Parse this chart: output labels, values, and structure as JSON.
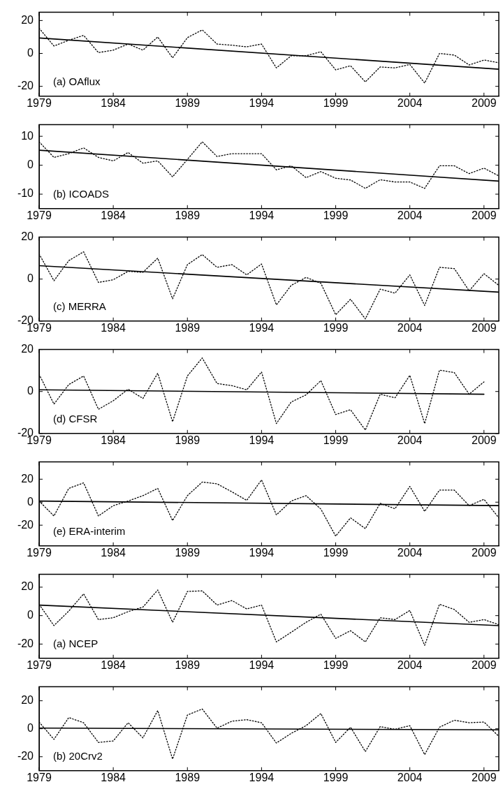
{
  "chart_data": [
    {
      "type": "line",
      "annotations": [
        "(a) OAflux"
      ],
      "xlim": [
        1979,
        2010
      ],
      "xticks": [
        1979,
        1984,
        1989,
        1994,
        1999,
        2004,
        2009
      ],
      "ylim": [
        -26,
        25
      ],
      "yticks": [
        -20,
        0,
        20
      ],
      "grid": false,
      "legend": false,
      "marker": "none",
      "series": [
        {
          "color": "#000000",
          "line_style": "dotted",
          "x": [
            1979,
            1980,
            1981,
            1982,
            1983,
            1984,
            1985,
            1986,
            1987,
            1988,
            1989,
            1990,
            1991,
            1992,
            1993,
            1994,
            1995,
            1996,
            1997,
            1998,
            1999,
            2000,
            2001,
            2002,
            2003,
            2004,
            2005,
            2006,
            2007,
            2008,
            2009,
            2010
          ],
          "values": [
            15.3,
            4.5,
            8,
            11,
            0.5,
            2,
            5.7,
            2,
            10,
            -2.7,
            9.6,
            14.3,
            5.7,
            5,
            4,
            5.7,
            -8.8,
            -1.4,
            -1.4,
            1,
            -10,
            -7.5,
            -17.3,
            -8.2,
            -8.8,
            -6.7,
            -18,
            0,
            -1,
            -7,
            -4,
            -5.7
          ]
        },
        {
          "color": "#000000",
          "line_style": "solid",
          "x": [
            1979,
            2010
          ],
          "values": [
            9.4,
            -9.6
          ]
        }
      ]
    },
    {
      "type": "line",
      "annotations": [
        "(b) ICOADS"
      ],
      "xlim": [
        1979,
        2010
      ],
      "xticks": [
        1979,
        1984,
        1989,
        1994,
        1999,
        2004,
        2009
      ],
      "ylim": [
        -15,
        14
      ],
      "yticks": [
        -10,
        0,
        10
      ],
      "grid": false,
      "legend": false,
      "marker": "none",
      "series": [
        {
          "color": "#000000",
          "line_style": "dotted",
          "x": [
            1979,
            1980,
            1981,
            1982,
            1983,
            1984,
            1985,
            1986,
            1987,
            1988,
            1989,
            1990,
            1991,
            1992,
            1993,
            1994,
            1995,
            1996,
            1997,
            1998,
            1999,
            2000,
            2001,
            2002,
            2003,
            2004,
            2005,
            2006,
            2007,
            2008,
            2009,
            2010
          ],
          "values": [
            8.1,
            2.7,
            4,
            6,
            2.7,
            1.5,
            4.4,
            0.7,
            1.5,
            -4,
            2,
            8.1,
            3,
            4,
            4,
            4,
            -1.6,
            -0.2,
            -4.3,
            -2.2,
            -4.5,
            -5.1,
            -8,
            -5,
            -5.8,
            -5.8,
            -8,
            -0.2,
            -0.2,
            -2.9,
            -1,
            -3.7
          ]
        },
        {
          "color": "#000000",
          "line_style": "solid",
          "x": [
            1979,
            2010
          ],
          "values": [
            5.2,
            -5.5
          ]
        }
      ]
    },
    {
      "type": "line",
      "annotations": [
        "(c) MERRA"
      ],
      "xlim": [
        1979,
        2010
      ],
      "xticks": [
        1979,
        1984,
        1989,
        1994,
        1999,
        2004,
        2009
      ],
      "ylim": [
        -20,
        20
      ],
      "yticks": [
        -20,
        0,
        20
      ],
      "grid": false,
      "legend": false,
      "marker": "none",
      "series": [
        {
          "color": "#000000",
          "line_style": "dotted",
          "x": [
            1979,
            1980,
            1981,
            1982,
            1983,
            1984,
            1985,
            1986,
            1987,
            1988,
            1989,
            1990,
            1991,
            1992,
            1993,
            1994,
            1995,
            1996,
            1997,
            1998,
            1999,
            2000,
            2001,
            2002,
            2003,
            2004,
            2005,
            2006,
            2007,
            2008,
            2009,
            2010
          ],
          "values": [
            12,
            -0.8,
            8.8,
            13,
            -1.6,
            -0.3,
            3.7,
            3.2,
            10,
            -9.4,
            6.9,
            11.7,
            5.6,
            6.9,
            2,
            7.2,
            -12.3,
            -3,
            0.8,
            -2,
            -17,
            -9.6,
            -19,
            -4.8,
            -6.7,
            2,
            -12.6,
            5.6,
            5,
            -5.6,
            2.6,
            -3
          ]
        },
        {
          "color": "#000000",
          "line_style": "solid",
          "x": [
            1979,
            2010
          ],
          "values": [
            6.4,
            -6.2
          ]
        }
      ]
    },
    {
      "type": "line",
      "annotations": [
        "(d) CFSR"
      ],
      "xlim": [
        1979,
        2010
      ],
      "xticks": [
        1979,
        1984,
        1989,
        1994,
        1999,
        2004,
        2009
      ],
      "ylim": [
        -20,
        20
      ],
      "yticks": [
        -20,
        0,
        20
      ],
      "grid": false,
      "legend": false,
      "marker": "none",
      "series": [
        {
          "color": "#000000",
          "line_style": "dotted",
          "x": [
            1979,
            1980,
            1981,
            1982,
            1983,
            1984,
            1985,
            1986,
            1987,
            1988,
            1989,
            1990,
            1991,
            1992,
            1993,
            1994,
            1995,
            1996,
            1997,
            1998,
            1999,
            2000,
            2001,
            2002,
            2003,
            2004,
            2005,
            2006,
            2007,
            2008,
            2009
          ],
          "values": [
            8.2,
            -6,
            3.3,
            7.4,
            -8.5,
            -4.4,
            1.1,
            -3.3,
            8.7,
            -14.4,
            7.4,
            16,
            3.8,
            2.8,
            0.8,
            9.3,
            -15.3,
            -5,
            -1.6,
            5.2,
            -11,
            -8.7,
            -18.4,
            -1.3,
            -3,
            7.7,
            -15.3,
            10.2,
            9,
            -1.3,
            4.6
          ]
        },
        {
          "color": "#000000",
          "line_style": "solid",
          "x": [
            1979,
            2009
          ],
          "values": [
            0.8,
            -1.3
          ]
        }
      ]
    },
    {
      "type": "line",
      "annotations": [
        "(e) ERA-interim"
      ],
      "xlim": [
        1979,
        2010
      ],
      "xticks": [
        1979,
        1984,
        1989,
        1994,
        1999,
        2004,
        2009
      ],
      "ylim": [
        -38,
        35
      ],
      "yticks": [
        -20,
        0,
        20
      ],
      "grid": false,
      "legend": false,
      "marker": "none",
      "series": [
        {
          "color": "#000000",
          "line_style": "dotted",
          "x": [
            1979,
            1980,
            1981,
            1982,
            1983,
            1984,
            1985,
            1986,
            1987,
            1988,
            1989,
            1990,
            1991,
            1992,
            1993,
            1994,
            1995,
            1996,
            1997,
            1998,
            1999,
            2000,
            2001,
            2002,
            2003,
            2004,
            2005,
            2006,
            2007,
            2008,
            2009,
            2010
          ],
          "values": [
            1,
            -12,
            12,
            16.8,
            -12,
            -3,
            1,
            5.7,
            12,
            -16,
            5.7,
            17.5,
            16,
            9,
            1.6,
            19.4,
            -11,
            1,
            5.7,
            -6,
            -29.5,
            -13.6,
            -23,
            -1,
            -5.7,
            13.7,
            -8,
            10.5,
            10.5,
            -3,
            2.5,
            -13.6
          ]
        },
        {
          "color": "#000000",
          "line_style": "solid",
          "x": [
            1979,
            2010
          ],
          "values": [
            1,
            -3
          ]
        }
      ]
    },
    {
      "type": "line",
      "annotations": [
        "(a) NCEP"
      ],
      "xlim": [
        1979,
        2010
      ],
      "xticks": [
        1979,
        1984,
        1989,
        1994,
        1999,
        2004,
        2009
      ],
      "ylim": [
        -30,
        29
      ],
      "yticks": [
        -20,
        0,
        20
      ],
      "grid": false,
      "legend": false,
      "marker": "none",
      "series": [
        {
          "color": "#000000",
          "line_style": "dotted",
          "x": [
            1979,
            1980,
            1981,
            1982,
            1983,
            1984,
            1985,
            1986,
            1987,
            1988,
            1989,
            1990,
            1991,
            1992,
            1993,
            1994,
            1995,
            1996,
            1997,
            1998,
            1999,
            2000,
            2001,
            2002,
            2003,
            2004,
            2005,
            2006,
            2007,
            2008,
            2009,
            2010
          ],
          "values": [
            7.9,
            -7,
            3.2,
            15.3,
            -2.8,
            -1.5,
            2.8,
            6,
            18,
            -4.7,
            17,
            17.4,
            7.4,
            10.6,
            4.7,
            7.4,
            -18.5,
            -11.7,
            -4.7,
            1,
            -16,
            -10.6,
            -18.5,
            -1.5,
            -2.8,
            3.6,
            -20.9,
            8,
            4.3,
            -4.7,
            -2.8,
            -6.4
          ]
        },
        {
          "color": "#000000",
          "line_style": "solid",
          "x": [
            1979,
            2010
          ],
          "values": [
            7.4,
            -7
          ]
        }
      ]
    },
    {
      "type": "line",
      "annotations": [
        "(b) 20Crv2"
      ],
      "xlim": [
        1979,
        2010
      ],
      "xticks": [
        1979,
        1984,
        1989,
        1994,
        1999,
        2004,
        2009
      ],
      "ylim": [
        -30,
        30
      ],
      "yticks": [
        -20,
        0,
        20
      ],
      "grid": false,
      "legend": false,
      "marker": "none",
      "series": [
        {
          "color": "#000000",
          "line_style": "dotted",
          "x": [
            1979,
            1980,
            1981,
            1982,
            1983,
            1984,
            1985,
            1986,
            1987,
            1988,
            1989,
            1990,
            1991,
            1992,
            1993,
            1994,
            1995,
            1996,
            1997,
            1998,
            1999,
            2000,
            2001,
            2002,
            2003,
            2004,
            2005,
            2006,
            2007,
            2008,
            2009,
            2010
          ],
          "values": [
            4.8,
            -7.6,
            8,
            4.3,
            -9.8,
            -8.7,
            4.3,
            -6.5,
            13,
            -21.7,
            9.8,
            14.1,
            0.4,
            5.4,
            6.5,
            4.3,
            -10.2,
            -3.3,
            2.2,
            10.9,
            -9.8,
            1.1,
            -16.3,
            1.5,
            -0.4,
            2.2,
            -18.5,
            1.1,
            6.1,
            4.3,
            4.8,
            -5.4
          ]
        },
        {
          "color": "#000000",
          "line_style": "solid",
          "x": [
            1979,
            2010
          ],
          "values": [
            0.5,
            -0.8
          ]
        }
      ]
    }
  ]
}
